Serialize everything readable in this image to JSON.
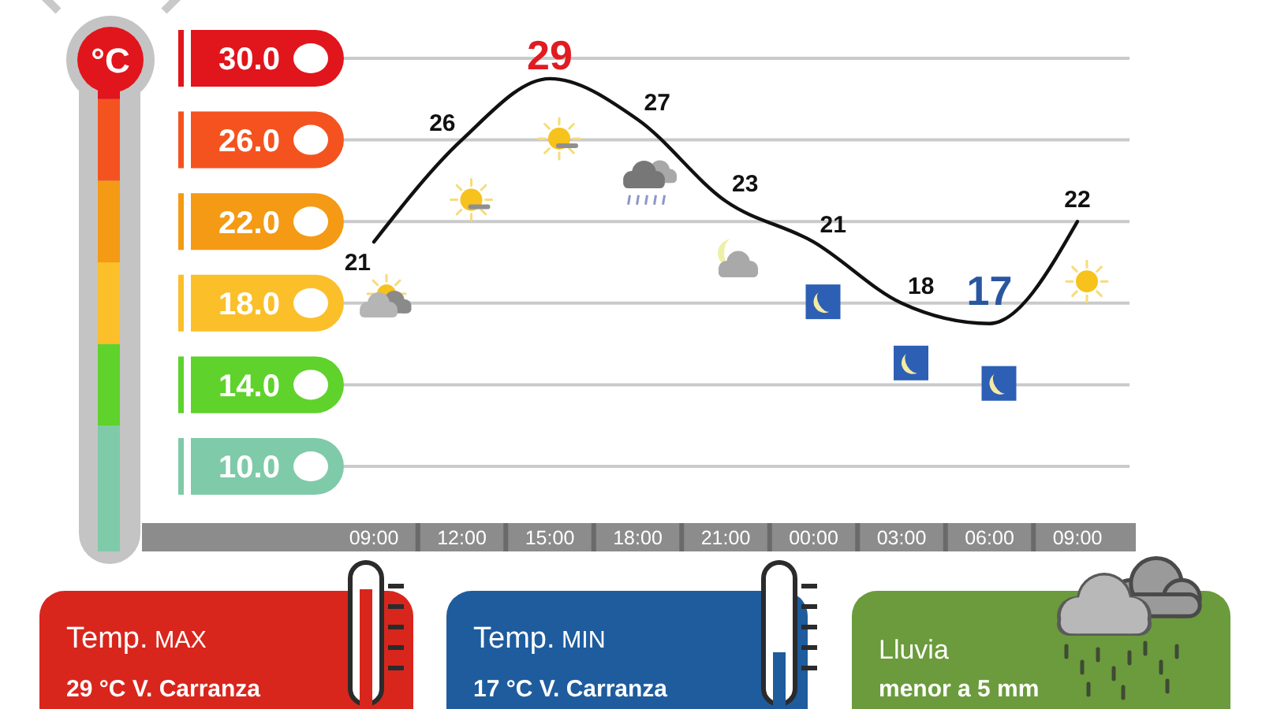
{
  "chart_data": {
    "type": "line",
    "ylabel": "°C",
    "categories": [
      "09:00",
      "12:00",
      "15:00",
      "18:00",
      "21:00",
      "00:00",
      "03:00",
      "06:00",
      "09:00"
    ],
    "values": [
      21,
      26,
      29,
      27,
      23,
      21,
      18,
      17,
      22
    ],
    "color": "#111111",
    "ylim": [
      10,
      30
    ],
    "yticks": [
      {
        "value": 10,
        "label": "10.0"
      },
      {
        "value": 14,
        "label": "14.0"
      },
      {
        "value": 18,
        "label": "18.0"
      },
      {
        "value": 22,
        "label": "22.0"
      },
      {
        "value": 26,
        "label": "26.0"
      },
      {
        "value": 30,
        "label": "30.0"
      }
    ],
    "grid": "y",
    "data_labels": true,
    "annotations": [
      "Temp. MAX",
      "29 °C V. Carranza",
      "Temp. MIN",
      "17 °C V. Carranza",
      "Lluvia",
      "menor a 5 mm"
    ]
  }
}
